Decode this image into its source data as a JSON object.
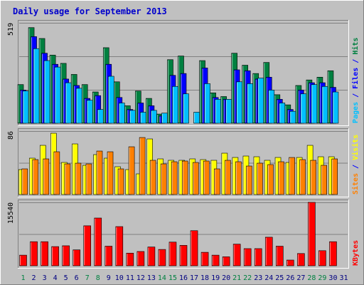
{
  "chart_data": {
    "type": "bar",
    "title": "Daily usage for September 2013",
    "colors": {
      "background": "#c0c0c0",
      "frame_light": "#ffffff",
      "frame_dark": "#808080",
      "title": "#0000cc",
      "pages": "#00c0ff",
      "files": "#0000ff",
      "hits": "#008040",
      "visits": "#ffff00",
      "sites": "#ff8000",
      "kbytes": "#ff0000",
      "weekday": "#000080",
      "weekend": "#008040",
      "separator": "#0000ff"
    },
    "days": [
      "1",
      "2",
      "3",
      "4",
      "5",
      "6",
      "7",
      "8",
      "9",
      "10",
      "11",
      "12",
      "13",
      "14",
      "15",
      "16",
      "17",
      "18",
      "19",
      "20",
      "21",
      "22",
      "23",
      "24",
      "25",
      "26",
      "27",
      "28",
      "29",
      "30",
      "31"
    ],
    "weekend_days": [
      "1",
      "7",
      "8",
      "14",
      "15",
      "21",
      "22",
      "28",
      "29"
    ],
    "panels": [
      {
        "id": "hits-files-pages",
        "max_label": "519",
        "ymax": 545,
        "legend": [
          {
            "text": "Pages",
            "color": "#00c0ff"
          },
          {
            "text": " / ",
            "color": "#0000ff"
          },
          {
            "text": "Files",
            "color": "#0000ff"
          },
          {
            "text": " / ",
            "color": "#0000ff"
          },
          {
            "text": "Hits",
            "color": "#008040"
          }
        ],
        "series": [
          {
            "name": "Hits",
            "color": "#008040",
            "values": [
              210,
              519,
              460,
              370,
              325,
              265,
              210,
              170,
              410,
              225,
              95,
              175,
              135,
              50,
              345,
              365,
              0,
              340,
              165,
              145,
              380,
              315,
              270,
              330,
              155,
              100,
              205,
              235,
              250,
              285,
              0
            ]
          },
          {
            "name": "Files",
            "color": "#0000ff",
            "values": [
              180,
              470,
              380,
              320,
              240,
              205,
              135,
              150,
              320,
              140,
              75,
              110,
              95,
              40,
              260,
              270,
              0,
              300,
              140,
              130,
              290,
              285,
              240,
              250,
              130,
              75,
              180,
              220,
              220,
              195,
              0
            ]
          },
          {
            "name": "Pages",
            "color": "#00c0ff",
            "values": [
              175,
              405,
              340,
              305,
              220,
              190,
              125,
              75,
              255,
              110,
              70,
              60,
              70,
              55,
              200,
              160,
              60,
              215,
              130,
              130,
              225,
              215,
              245,
              180,
              110,
              65,
              160,
              210,
              200,
              170,
              0
            ]
          }
        ]
      },
      {
        "id": "visits-sites",
        "max_label": "86",
        "ymax": 89,
        "legend": [
          {
            "text": "Sites",
            "color": "#ff8000"
          },
          {
            "text": " / ",
            "color": "#0000ff"
          },
          {
            "text": "Visits",
            "color": "#ffff00"
          }
        ],
        "series": [
          {
            "name": "Visits",
            "color": "#ffff00",
            "values": [
              35,
              51,
              69,
              86,
              45,
              71,
              41,
              56,
              51,
              39,
              35,
              29,
              78,
              50,
              48,
              48,
              50,
              49,
              48,
              58,
              52,
              54,
              53,
              48,
              52,
              45,
              52,
              69,
              53,
              53,
              0
            ]
          },
          {
            "name": "Sites",
            "color": "#ff8000",
            "values": [
              36,
              49,
              50,
              60,
              43,
              44,
              43,
              61,
              60,
              36,
              67,
              80,
              48,
              43,
              46,
              47,
              45,
              47,
              36,
              48,
              46,
              40,
              44,
              42,
              46,
              52,
              49,
              48,
              41,
              50,
              0
            ]
          }
        ]
      },
      {
        "id": "kbytes",
        "max_label": "15540",
        "ymax": 15540,
        "legend": [
          {
            "text": "KBytes",
            "color": "#ff0000"
          }
        ],
        "series": [
          {
            "name": "KBytes",
            "color": "#ff0000",
            "values": [
              2600,
              5900,
              5900,
              4700,
              4900,
              3900,
              9800,
              11700,
              4800,
              9600,
              3100,
              3500,
              4600,
              4000,
              5800,
              5000,
              8600,
              3300,
              2600,
              2200,
              5300,
              4200,
              4200,
              7000,
              4800,
              1400,
              3000,
              15540,
              3700,
              5900,
              0
            ]
          }
        ]
      }
    ]
  }
}
